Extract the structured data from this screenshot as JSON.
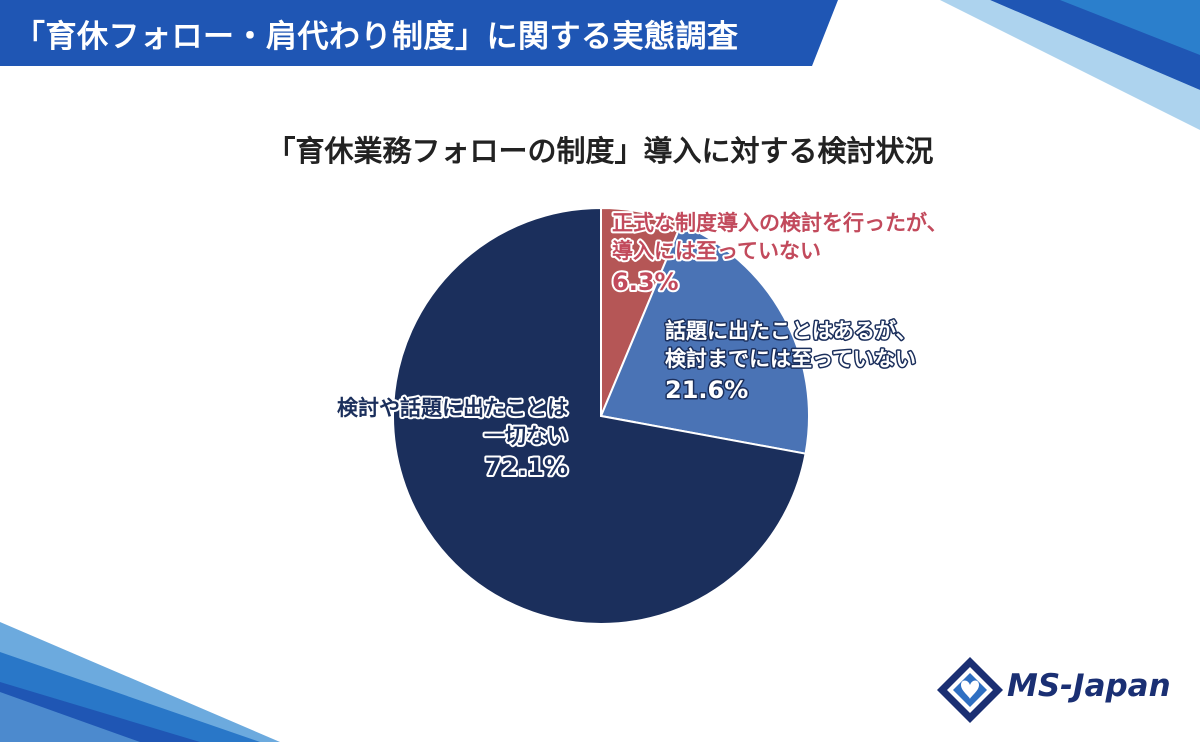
{
  "header": {
    "title": "「育休フォロー・肩代わり制度」に関する実態調査"
  },
  "logo": {
    "text": "MS-Japan",
    "icon": "ms-japan-diamond-logo"
  },
  "colors": {
    "banner": "#1f56b4",
    "slice_considered": "#b55656",
    "slice_discussed": "#4a73b5",
    "slice_none": "#1b2f5c",
    "label_considered": "#c24a5c",
    "label_discussed": "#ffffff",
    "label_none": "#1b2f5c"
  },
  "chart_data": {
    "type": "pie",
    "title": "「育休業務フォローの制度」導入に対する検討状況",
    "start_angle_deg": 0,
    "direction": "clockwise",
    "slices": [
      {
        "label_lines": [
          "正式な制度導入の検討を行ったが、",
          "導入には至っていない"
        ],
        "value": 6.3,
        "value_label": "6.3%"
      },
      {
        "label_lines": [
          "話題に出たことはあるが、",
          "検討までには至っていない"
        ],
        "value": 21.6,
        "value_label": "21.6%"
      },
      {
        "label_lines": [
          "検討や話題に出たことは",
          "一切ない"
        ],
        "value": 72.1,
        "value_label": "72.1%"
      }
    ]
  }
}
